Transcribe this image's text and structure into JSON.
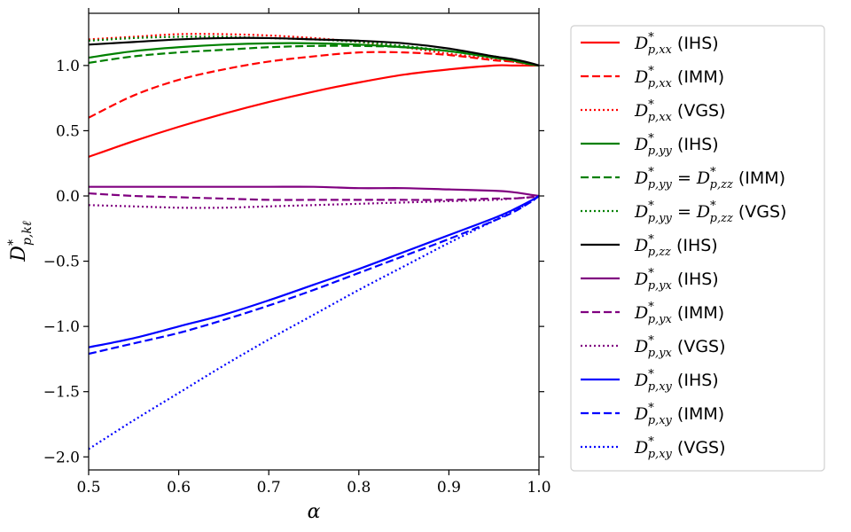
{
  "chart_data": {
    "type": "line",
    "xlabel": "α",
    "ylabel": "D*p,kℓ",
    "xlim": [
      0.5,
      1.0
    ],
    "ylim": [
      -2.1,
      1.4
    ],
    "xticks": [
      0.5,
      0.6,
      0.7,
      0.8,
      0.9,
      1.0
    ],
    "xtick_labels": [
      "0.5",
      "0.6",
      "0.7",
      "0.8",
      "0.9",
      "1.0"
    ],
    "yticks": [
      -2.0,
      -1.5,
      -1.0,
      -0.5,
      0.0,
      0.5,
      1.0
    ],
    "ytick_labels": [
      "−2.0",
      "−1.5",
      "−1.0",
      "−0.5",
      "0.0",
      "0.5",
      "1.0"
    ],
    "grid": false,
    "legend_position": "outside-right",
    "x": [
      0.5,
      0.55,
      0.6,
      0.65,
      0.7,
      0.75,
      0.8,
      0.85,
      0.9,
      0.95,
      0.97,
      0.99,
      1.0
    ],
    "series": [
      {
        "label_sub": "p,xx",
        "label_eq": "",
        "label_tag": "(IHS)",
        "color": "#ff0000",
        "style": "solid",
        "values": [
          0.3,
          0.42,
          0.53,
          0.63,
          0.72,
          0.8,
          0.87,
          0.93,
          0.97,
          1.0,
          1.0,
          1.0,
          1.0
        ]
      },
      {
        "label_sub": "p,xx",
        "label_eq": "",
        "label_tag": "(IMM)",
        "color": "#ff0000",
        "style": "dashed",
        "values": [
          0.6,
          0.77,
          0.89,
          0.97,
          1.03,
          1.07,
          1.1,
          1.1,
          1.08,
          1.04,
          1.03,
          1.01,
          1.0
        ]
      },
      {
        "label_sub": "p,xx",
        "label_eq": "",
        "label_tag": "(VGS)",
        "color": "#ff0000",
        "style": "dotted",
        "values": [
          1.2,
          1.22,
          1.24,
          1.24,
          1.23,
          1.21,
          1.18,
          1.14,
          1.09,
          1.05,
          1.03,
          1.01,
          1.0
        ]
      },
      {
        "label_sub": "p,yy",
        "label_eq": "",
        "label_tag": "(IHS)",
        "color": "#008000",
        "style": "solid",
        "values": [
          1.06,
          1.11,
          1.14,
          1.16,
          1.17,
          1.17,
          1.16,
          1.14,
          1.11,
          1.06,
          1.04,
          1.01,
          1.0
        ]
      },
      {
        "label_sub": "p,yy",
        "label_eq": "p,zz",
        "label_tag": "(IMM)",
        "color": "#008000",
        "style": "dashed",
        "values": [
          1.02,
          1.07,
          1.1,
          1.12,
          1.14,
          1.15,
          1.15,
          1.14,
          1.11,
          1.07,
          1.04,
          1.01,
          1.0
        ]
      },
      {
        "label_sub": "p,yy",
        "label_eq": "p,zz",
        "label_tag": "(VGS)",
        "color": "#008000",
        "style": "dotted",
        "values": [
          1.19,
          1.21,
          1.22,
          1.22,
          1.21,
          1.2,
          1.18,
          1.15,
          1.11,
          1.06,
          1.04,
          1.01,
          1.0
        ]
      },
      {
        "label_sub": "p,zz",
        "label_eq": "",
        "label_tag": "(IHS)",
        "color": "#000000",
        "style": "solid",
        "values": [
          1.16,
          1.18,
          1.2,
          1.21,
          1.21,
          1.2,
          1.19,
          1.17,
          1.13,
          1.07,
          1.05,
          1.02,
          1.0
        ]
      },
      {
        "label_sub": "p,yx",
        "label_eq": "",
        "label_tag": "(IHS)",
        "color": "#800080",
        "style": "solid",
        "values": [
          0.07,
          0.07,
          0.07,
          0.07,
          0.07,
          0.07,
          0.06,
          0.06,
          0.05,
          0.04,
          0.03,
          0.01,
          0.0
        ]
      },
      {
        "label_sub": "p,yx",
        "label_eq": "",
        "label_tag": "(IMM)",
        "color": "#800080",
        "style": "dashed",
        "values": [
          0.02,
          0.0,
          -0.01,
          -0.02,
          -0.03,
          -0.03,
          -0.03,
          -0.03,
          -0.03,
          -0.02,
          -0.02,
          -0.01,
          0.0
        ]
      },
      {
        "label_sub": "p,yx",
        "label_eq": "",
        "label_tag": "(VGS)",
        "color": "#800080",
        "style": "dotted",
        "values": [
          -0.07,
          -0.08,
          -0.09,
          -0.09,
          -0.08,
          -0.07,
          -0.06,
          -0.05,
          -0.04,
          -0.03,
          -0.02,
          -0.01,
          0.0
        ]
      },
      {
        "label_sub": "p,xy",
        "label_eq": "",
        "label_tag": "(IHS)",
        "color": "#0000ff",
        "style": "solid",
        "values": [
          -1.16,
          -1.09,
          -1.0,
          -0.91,
          -0.8,
          -0.68,
          -0.56,
          -0.43,
          -0.3,
          -0.17,
          -0.11,
          -0.04,
          0.0
        ]
      },
      {
        "label_sub": "p,xy",
        "label_eq": "",
        "label_tag": "(IMM)",
        "color": "#0000ff",
        "style": "dashed",
        "values": [
          -1.21,
          -1.13,
          -1.05,
          -0.95,
          -0.84,
          -0.72,
          -0.59,
          -0.46,
          -0.33,
          -0.19,
          -0.13,
          -0.05,
          0.0
        ]
      },
      {
        "label_sub": "p,xy",
        "label_eq": "",
        "label_tag": "(VGS)",
        "color": "#0000ff",
        "style": "dotted",
        "values": [
          -1.94,
          -1.72,
          -1.51,
          -1.3,
          -1.1,
          -0.91,
          -0.72,
          -0.54,
          -0.36,
          -0.19,
          -0.12,
          -0.05,
          0.0
        ]
      }
    ]
  }
}
